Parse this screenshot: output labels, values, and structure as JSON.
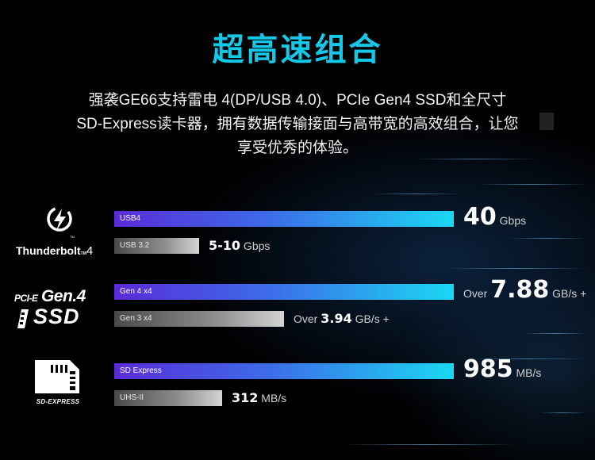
{
  "page": {
    "title": "超高速组合",
    "description_lines": [
      "强袭GE66支持雷电 4(DP/USB 4.0)、PCIe Gen4 SSD和全尺寸",
      "SD-Express读卡器，拥有数据传输接面与高带宽的高效组合，让您",
      "享受优秀的体验。"
    ]
  },
  "logos": {
    "thunderbolt": {
      "text": "Thunderbolt",
      "tm": "TM",
      "number": "4",
      "icon": "lightning-bolt-icon"
    },
    "pcie": {
      "prefix": "PCI-E",
      "gen": "Gen.4",
      "ssd": "SSD",
      "icon": "ssd-chip-icon"
    },
    "sd": {
      "text": "SD-EXPRESS",
      "icon": "sd-card-icon"
    }
  },
  "chart_data": {
    "type": "bar",
    "orientation": "horizontal",
    "colors": {
      "new": "#1ad8f2",
      "new_start": "#5a2bd8",
      "old": "#8e8e8e"
    },
    "groups": [
      {
        "name": "Thunderbolt 4",
        "bars": [
          {
            "label": "USB4",
            "value": 40,
            "unit": "Gbps",
            "prefix": "",
            "suffix": "",
            "display_value": "40",
            "style": "new"
          },
          {
            "label": "USB 3.2",
            "value": 10,
            "unit": "Gbps",
            "prefix": "",
            "suffix": "",
            "display_value": "5-10",
            "style": "old"
          }
        ]
      },
      {
        "name": "PCI-E Gen.4 SSD",
        "bars": [
          {
            "label": "Gen 4 x4",
            "value": 7.88,
            "unit": "GB/s",
            "prefix": "Over",
            "suffix": "+",
            "display_value": "7.88",
            "style": "new"
          },
          {
            "label": "Gen 3 x4",
            "value": 3.94,
            "unit": "GB/s",
            "prefix": "Over",
            "suffix": "+",
            "display_value": "3.94",
            "style": "old"
          }
        ]
      },
      {
        "name": "SD-EXPRESS",
        "bars": [
          {
            "label": "SD Express",
            "value": 985,
            "unit": "MB/s",
            "prefix": "",
            "suffix": "",
            "display_value": "985",
            "style": "new"
          },
          {
            "label": "UHS-II",
            "value": 312,
            "unit": "MB/s",
            "prefix": "",
            "suffix": "",
            "display_value": "312",
            "style": "old"
          }
        ]
      }
    ]
  }
}
